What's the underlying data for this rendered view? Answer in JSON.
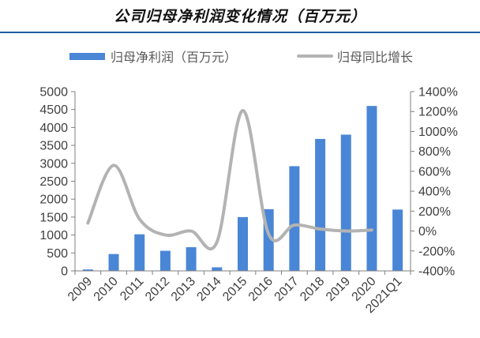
{
  "header": {
    "title": "公司归母净利润变化情况（百万元）"
  },
  "colors": {
    "bar": "#4a86d6",
    "line": "#b3b3b3",
    "rule": "#1b5fa8",
    "axis": "#7f7f7f"
  },
  "chart_data": {
    "type": "bar",
    "combo": "bar+line",
    "categories": [
      "2009",
      "2010",
      "2011",
      "2012",
      "2013",
      "2014",
      "2015",
      "2016",
      "2017",
      "2018",
      "2019",
      "2020",
      "2021Q1"
    ],
    "series": [
      {
        "name": "归母净利润（百万元）",
        "type": "bar",
        "axis": "left",
        "values": [
          40,
          470,
          1020,
          560,
          660,
          100,
          1500,
          1720,
          2920,
          3680,
          3800,
          4600,
          1710
        ]
      },
      {
        "name": "归母同比增长",
        "type": "line",
        "axis": "right",
        "unit": "%",
        "values": [
          80,
          660,
          120,
          -40,
          0,
          -110,
          1210,
          -30,
          60,
          20,
          0,
          10,
          null
        ]
      }
    ],
    "yleft": {
      "lim": [
        0,
        5000
      ],
      "ticks": [
        "0",
        "500",
        "1000",
        "1500",
        "2000",
        "2500",
        "3000",
        "3500",
        "4000",
        "4500",
        "5000"
      ]
    },
    "yright": {
      "lim": [
        -400,
        1400
      ],
      "ticks": [
        "-400%",
        "-200%",
        "0%",
        "200%",
        "400%",
        "600%",
        "800%",
        "1000%",
        "1200%",
        "1400%"
      ]
    },
    "legend": "top",
    "grid": false
  }
}
